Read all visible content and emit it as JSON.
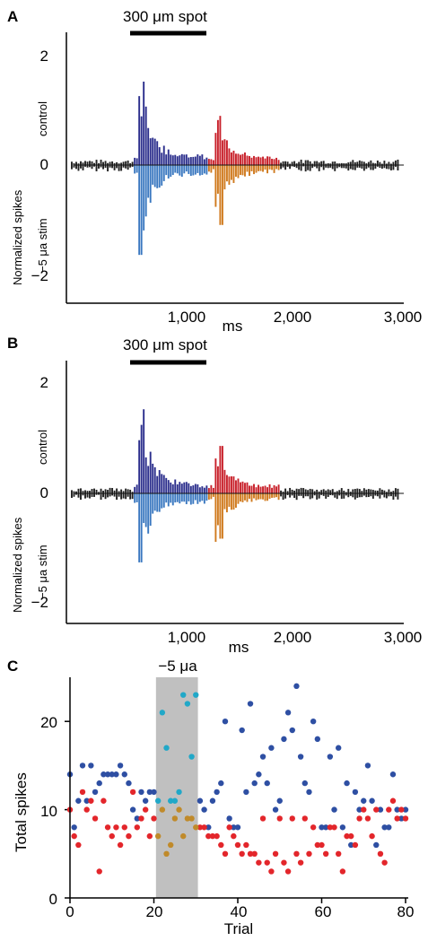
{
  "panel_a": {
    "label": "A",
    "stim_bar_label": "300 μm spot",
    "ylabel": "Normalized spikes",
    "upper_label": "control",
    "lower_label": "−5 μa stim",
    "xlabel": "ms",
    "ytick_labels": [
      "2",
      "0",
      "−2"
    ],
    "xtick_labels": [
      "1,000",
      "2,000",
      "3,000"
    ]
  },
  "panel_b": {
    "label": "B",
    "stim_bar_label": "300 μm spot",
    "ylabel": "Normalized spikes",
    "upper_label": "control",
    "lower_label": "−5 μa stim",
    "xlabel": "ms",
    "ytick_labels": [
      "2",
      "0",
      "−2"
    ],
    "xtick_labels": [
      "1,000",
      "2,000",
      "3,000"
    ]
  },
  "panel_c": {
    "label": "C",
    "band_label": "−5 μa",
    "ylabel": "Total spikes",
    "xlabel": "Trial",
    "ytick_labels": [
      "0",
      "10",
      "20"
    ],
    "xtick_labels": [
      "0",
      "20",
      "40",
      "60",
      "80"
    ]
  },
  "colors": {
    "baseline": "#222222",
    "on_upper": "#2b2e8c",
    "on_lower": "#3a78c0",
    "off_upper": "#c8202a",
    "off_lower": "#d07a1e",
    "stim_band": "#c0c0c0",
    "scatter_blue": "#2e4fa3",
    "scatter_red": "#e3262b",
    "scatter_cyan": "#21a8c8",
    "scatter_gold": "#c08a2a"
  },
  "chart_data": [
    {
      "panel": "A",
      "type": "bar",
      "stim_window_ms": [
        600,
        1250
      ],
      "xlim": [
        0,
        3000
      ],
      "ylim": [
        -2.6,
        2.6
      ],
      "bin_ms": 20,
      "peaks": [
        {
          "name": "on_control",
          "t": 680,
          "value": 1.95
        },
        {
          "name": "on_stim",
          "t": 650,
          "value": -2.1
        },
        {
          "name": "off_control",
          "t": 1360,
          "value": 1.15
        },
        {
          "name": "off_stim",
          "t": 1370,
          "value": -1.4
        }
      ]
    },
    {
      "panel": "B",
      "type": "bar",
      "stim_window_ms": [
        600,
        1250
      ],
      "xlim": [
        0,
        3000
      ],
      "ylim": [
        -2.6,
        2.6
      ],
      "bin_ms": 20,
      "peaks": [
        {
          "name": "on_control",
          "t": 680,
          "value": 1.95
        },
        {
          "name": "on_stim",
          "t": 650,
          "value": -1.6
        },
        {
          "name": "off_control",
          "t": 1370,
          "value": 1.1
        },
        {
          "name": "off_stim",
          "t": 1370,
          "value": -1.05
        }
      ]
    },
    {
      "panel": "C",
      "type": "scatter",
      "xlabel": "Trial",
      "ylabel": "Total spikes",
      "xlim": [
        0,
        80
      ],
      "ylim": [
        0,
        25
      ],
      "stim_band": [
        20.5,
        30.5
      ],
      "series": [
        {
          "color": "blue",
          "points": [
            [
              0,
              14
            ],
            [
              1,
              8
            ],
            [
              2,
              11
            ],
            [
              3,
              15
            ],
            [
              4,
              11
            ],
            [
              5,
              15
            ],
            [
              6,
              12
            ],
            [
              7,
              13
            ],
            [
              8,
              14
            ],
            [
              9,
              14
            ],
            [
              10,
              14
            ],
            [
              11,
              14
            ],
            [
              12,
              15
            ],
            [
              13,
              14
            ],
            [
              14,
              13
            ],
            [
              15,
              10
            ],
            [
              16,
              9
            ],
            [
              17,
              12
            ],
            [
              18,
              11
            ],
            [
              19,
              12
            ],
            [
              20,
              12
            ],
            [
              31,
              11
            ],
            [
              32,
              10
            ],
            [
              33,
              8
            ],
            [
              34,
              11
            ],
            [
              35,
              12
            ],
            [
              36,
              13
            ],
            [
              37,
              20
            ],
            [
              38,
              9
            ],
            [
              39,
              8
            ],
            [
              40,
              8
            ],
            [
              41,
              19
            ],
            [
              42,
              12
            ],
            [
              43,
              22
            ],
            [
              44,
              13
            ],
            [
              45,
              14
            ],
            [
              46,
              16
            ],
            [
              47,
              13
            ],
            [
              48,
              17
            ],
            [
              49,
              10
            ],
            [
              50,
              11
            ],
            [
              51,
              18
            ],
            [
              52,
              21
            ],
            [
              53,
              19
            ],
            [
              54,
              24
            ],
            [
              55,
              16
            ],
            [
              56,
              13
            ],
            [
              57,
              12
            ],
            [
              58,
              20
            ],
            [
              59,
              18
            ],
            [
              60,
              8
            ],
            [
              61,
              8
            ],
            [
              62,
              16
            ],
            [
              63,
              10
            ],
            [
              64,
              17
            ],
            [
              65,
              8
            ],
            [
              66,
              13
            ],
            [
              67,
              6
            ],
            [
              68,
              12
            ],
            [
              69,
              10
            ],
            [
              70,
              11
            ],
            [
              71,
              15
            ],
            [
              72,
              11
            ],
            [
              73,
              6
            ],
            [
              74,
              10
            ],
            [
              75,
              8
            ],
            [
              76,
              8
            ],
            [
              77,
              14
            ],
            [
              78,
              10
            ],
            [
              79,
              9
            ],
            [
              80,
              10
            ]
          ]
        },
        {
          "color": "red",
          "points": [
            [
              0,
              10
            ],
            [
              1,
              7
            ],
            [
              2,
              6
            ],
            [
              3,
              12
            ],
            [
              4,
              10
            ],
            [
              5,
              11
            ],
            [
              6,
              9
            ],
            [
              7,
              3
            ],
            [
              8,
              11
            ],
            [
              9,
              8
            ],
            [
              10,
              7
            ],
            [
              11,
              8
            ],
            [
              12,
              6
            ],
            [
              13,
              8
            ],
            [
              14,
              7
            ],
            [
              15,
              12
            ],
            [
              16,
              8
            ],
            [
              17,
              9
            ],
            [
              18,
              10
            ],
            [
              19,
              7
            ],
            [
              20,
              9
            ],
            [
              31,
              8
            ],
            [
              32,
              8
            ],
            [
              33,
              7
            ],
            [
              34,
              7
            ],
            [
              35,
              7
            ],
            [
              36,
              6
            ],
            [
              37,
              5
            ],
            [
              38,
              8
            ],
            [
              39,
              7
            ],
            [
              40,
              6
            ],
            [
              41,
              5
            ],
            [
              42,
              6
            ],
            [
              43,
              5
            ],
            [
              44,
              5
            ],
            [
              45,
              4
            ],
            [
              46,
              9
            ],
            [
              47,
              4
            ],
            [
              48,
              3
            ],
            [
              49,
              5
            ],
            [
              50,
              9
            ],
            [
              51,
              4
            ],
            [
              52,
              3
            ],
            [
              53,
              9
            ],
            [
              54,
              5
            ],
            [
              55,
              4
            ],
            [
              56,
              9
            ],
            [
              57,
              5
            ],
            [
              58,
              8
            ],
            [
              59,
              6
            ],
            [
              60,
              6
            ],
            [
              61,
              5
            ],
            [
              62,
              8
            ],
            [
              63,
              8
            ],
            [
              64,
              5
            ],
            [
              65,
              3
            ],
            [
              66,
              7
            ],
            [
              67,
              7
            ],
            [
              68,
              6
            ],
            [
              69,
              9
            ],
            [
              70,
              10
            ],
            [
              71,
              9
            ],
            [
              72,
              7
            ],
            [
              73,
              10
            ],
            [
              74,
              5
            ],
            [
              75,
              4
            ],
            [
              76,
              10
            ],
            [
              77,
              11
            ],
            [
              78,
              9
            ],
            [
              79,
              10
            ],
            [
              80,
              9
            ]
          ]
        },
        {
          "color": "cyan",
          "points": [
            [
              21,
              11
            ],
            [
              22,
              21
            ],
            [
              23,
              17
            ],
            [
              24,
              11
            ],
            [
              25,
              11
            ],
            [
              26,
              12
            ],
            [
              27,
              23
            ],
            [
              28,
              22
            ],
            [
              29,
              16
            ],
            [
              30,
              23
            ]
          ]
        },
        {
          "color": "gold",
          "points": [
            [
              21,
              7
            ],
            [
              22,
              10
            ],
            [
              23,
              5
            ],
            [
              24,
              6
            ],
            [
              25,
              9
            ],
            [
              26,
              10
            ],
            [
              27,
              7
            ],
            [
              28,
              9
            ],
            [
              29,
              9
            ],
            [
              30,
              8
            ]
          ]
        }
      ]
    }
  ]
}
